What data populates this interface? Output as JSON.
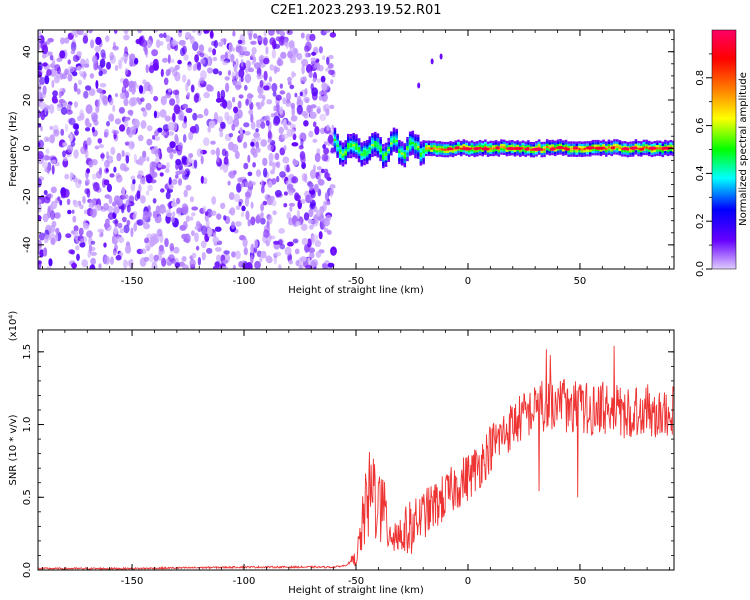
{
  "title": "C2E1.2023.293.19.52.R01",
  "chart_data": [
    {
      "type": "heatmap",
      "xlabel": "Height of straight line (km)",
      "ylabel": "Frequency (Hz)",
      "xlim": [
        -192,
        92
      ],
      "ylim": [
        -50,
        49
      ],
      "xticks": [
        -150,
        -100,
        -50,
        0,
        50
      ],
      "yticks": [
        -40,
        -20,
        0,
        20,
        40
      ],
      "colorbar": {
        "label": "Normalized spectral amplitude",
        "range": [
          0.0,
          1.0
        ],
        "ticks": [
          0.0,
          0.2,
          0.4,
          0.6,
          0.8
        ],
        "colormap": [
          "#e0ccff",
          "#6600ff",
          "#0000ff",
          "#00ffff",
          "#00ff00",
          "#ffff00",
          "#ff7f00",
          "#ff0000",
          "#ff0066"
        ]
      },
      "regions": {
        "noise_x": [
          -192,
          -60
        ],
        "noise_level": 0.35,
        "echo_x": [
          -60,
          92
        ],
        "echo_center_hz": 0,
        "echo_peak": 0.9
      }
    },
    {
      "type": "line",
      "xlabel": "Height of straight line (km)",
      "ylabel": "SNR (10 * v/v)",
      "yscale_note": "(x10⁴)",
      "xlim": [
        -192,
        92
      ],
      "ylim": [
        0,
        1.65
      ],
      "xticks": [
        -150,
        -100,
        -50,
        0,
        50
      ],
      "yticks": [
        0.0,
        0.5,
        1.0,
        1.5
      ],
      "ytick_labels": [
        "0.0",
        "0.5",
        "1.0",
        "1.5"
      ],
      "color": "#ee3333",
      "series": [
        {
          "x": [
            -192,
            -150,
            -100,
            -60,
            -55,
            -50,
            -48,
            -46,
            -44,
            -42,
            -40,
            -38,
            -35,
            -30,
            -25,
            -20,
            -15,
            -10,
            -5,
            0,
            5,
            10,
            15,
            20,
            25,
            30,
            35,
            40,
            45,
            50,
            55,
            60,
            65,
            70,
            75,
            80,
            85,
            90
          ],
          "values": [
            0.01,
            0.01,
            0.02,
            0.02,
            0.03,
            0.08,
            0.22,
            0.4,
            0.5,
            0.55,
            0.45,
            0.4,
            0.28,
            0.24,
            0.3,
            0.38,
            0.44,
            0.5,
            0.58,
            0.64,
            0.72,
            0.84,
            0.92,
            1.0,
            1.06,
            1.1,
            1.14,
            1.15,
            1.12,
            1.12,
            1.1,
            1.12,
            1.1,
            1.08,
            1.1,
            1.1,
            1.08,
            1.1
          ]
        }
      ]
    }
  ]
}
